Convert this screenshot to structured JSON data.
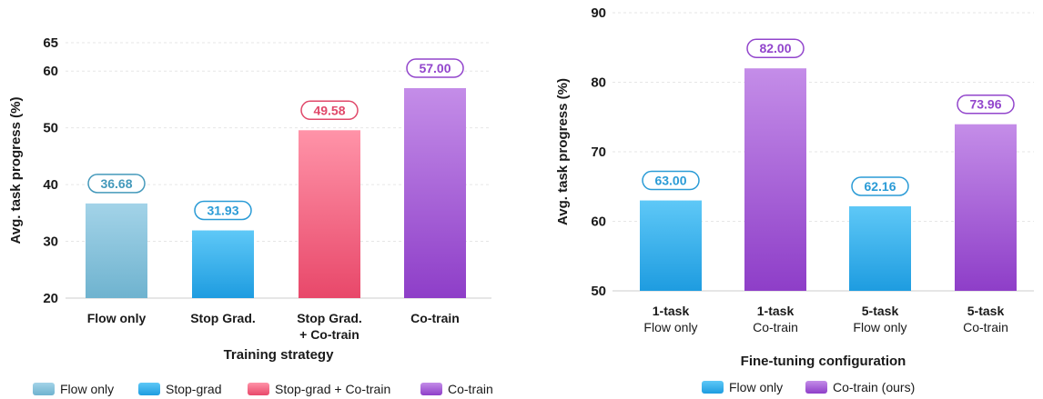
{
  "colors": {
    "flow_only_left": [
      "#a3d3e8",
      "#6fb3cf"
    ],
    "stop_grad": [
      "#5ec8f7",
      "#1e9ce0"
    ],
    "stop_grad_cotrain": [
      "#ff93a8",
      "#e8486a"
    ],
    "cotrain": [
      "#c48de8",
      "#8e3ec8"
    ],
    "flow_only_right": [
      "#5ec8f7",
      "#1e9ce0"
    ],
    "label_flow_only_left": "#4499bb",
    "label_stop_grad": "#2a9bd6",
    "label_stop_grad_cotrain": "#e0486a",
    "label_cotrain": "#9245cc",
    "grid": "#e6e6e6",
    "axis": "#cccccc"
  },
  "chart_data": [
    {
      "type": "bar",
      "xlabel": "Training strategy",
      "ylabel": "Avg. task progress (%)",
      "ylim": [
        20,
        65
      ],
      "yticks": [
        20,
        30,
        40,
        50,
        60,
        65
      ],
      "grid": true,
      "categories": [
        {
          "lines": [
            "Flow only"
          ]
        },
        {
          "lines": [
            "Stop Grad."
          ]
        },
        {
          "lines": [
            "Stop Grad.",
            "+ Co-train"
          ]
        },
        {
          "lines": [
            "Co-train"
          ]
        }
      ],
      "values": [
        36.68,
        31.93,
        49.58,
        57.0
      ],
      "value_labels": [
        "36.68",
        "31.93",
        "49.58",
        "57.00"
      ],
      "series_style": [
        "flow_only_left",
        "stop_grad",
        "stop_grad_cotrain",
        "cotrain"
      ],
      "legend": {
        "position": "bottom",
        "items": [
          {
            "label": "Flow only",
            "style": "flow_only_left"
          },
          {
            "label": "Stop-grad",
            "style": "stop_grad"
          },
          {
            "label": "Stop-grad + Co-train",
            "style": "stop_grad_cotrain"
          },
          {
            "label": "Co-train",
            "style": "cotrain"
          }
        ]
      }
    },
    {
      "type": "bar",
      "xlabel": "Fine-tuning configuration",
      "ylabel": "Avg. task progress (%)",
      "ylim": [
        50,
        90
      ],
      "yticks": [
        50,
        60,
        70,
        80,
        90
      ],
      "grid": true,
      "categories": [
        {
          "lines": [
            "1-task",
            "Flow only"
          ]
        },
        {
          "lines": [
            "1-task",
            "Co-train"
          ]
        },
        {
          "lines": [
            "5-task",
            "Flow only"
          ]
        },
        {
          "lines": [
            "5-task",
            "Co-train"
          ]
        }
      ],
      "values": [
        63.0,
        82.0,
        62.16,
        73.96
      ],
      "value_labels": [
        "63.00",
        "82.00",
        "62.16",
        "73.96"
      ],
      "series_style": [
        "flow_only_right",
        "cotrain",
        "flow_only_right",
        "cotrain"
      ],
      "legend": {
        "position": "bottom",
        "items": [
          {
            "label": "Flow only",
            "style": "flow_only_right"
          },
          {
            "label": "Co-train (ours)",
            "style": "cotrain"
          }
        ]
      }
    }
  ]
}
